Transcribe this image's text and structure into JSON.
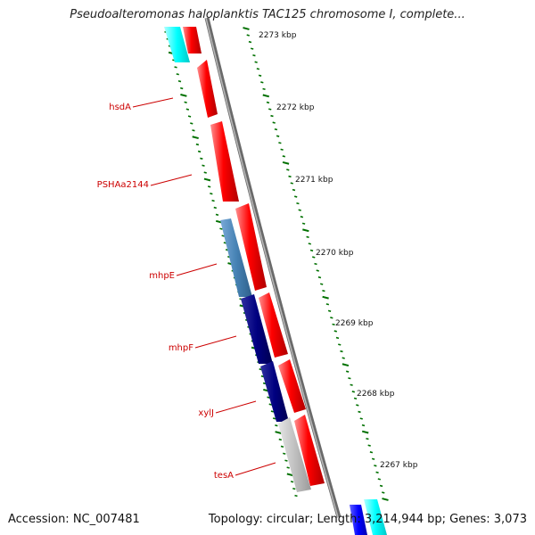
{
  "title": "Pseudoalteromonas haloplanktis TAC125 chromosome I, complete...",
  "accession_text": "Accession: NC_007481",
  "summary_text": "Topology: circular; Length: 3,214,944 bp; Genes: 3,073",
  "kbp_labels": [
    "2273 kbp",
    "2272 kbp",
    "2271 kbp",
    "2270 kbp",
    "2269 kbp",
    "2268 kbp",
    "2267 kbp"
  ],
  "gene_labels": [
    "hsdA",
    "PSHAa2144",
    "mhpE",
    "mhpF",
    "xylJ",
    "tesA"
  ],
  "colors": {
    "forward_cds": "#ff0000",
    "reverse_cds": "#000080",
    "steelblue_cds": "#4682b4",
    "grey_cds": "#c0c0c0",
    "cyan_feature": "#00ffff",
    "tick": "#007000",
    "backbone": "#777777",
    "label": "#cc0000"
  }
}
